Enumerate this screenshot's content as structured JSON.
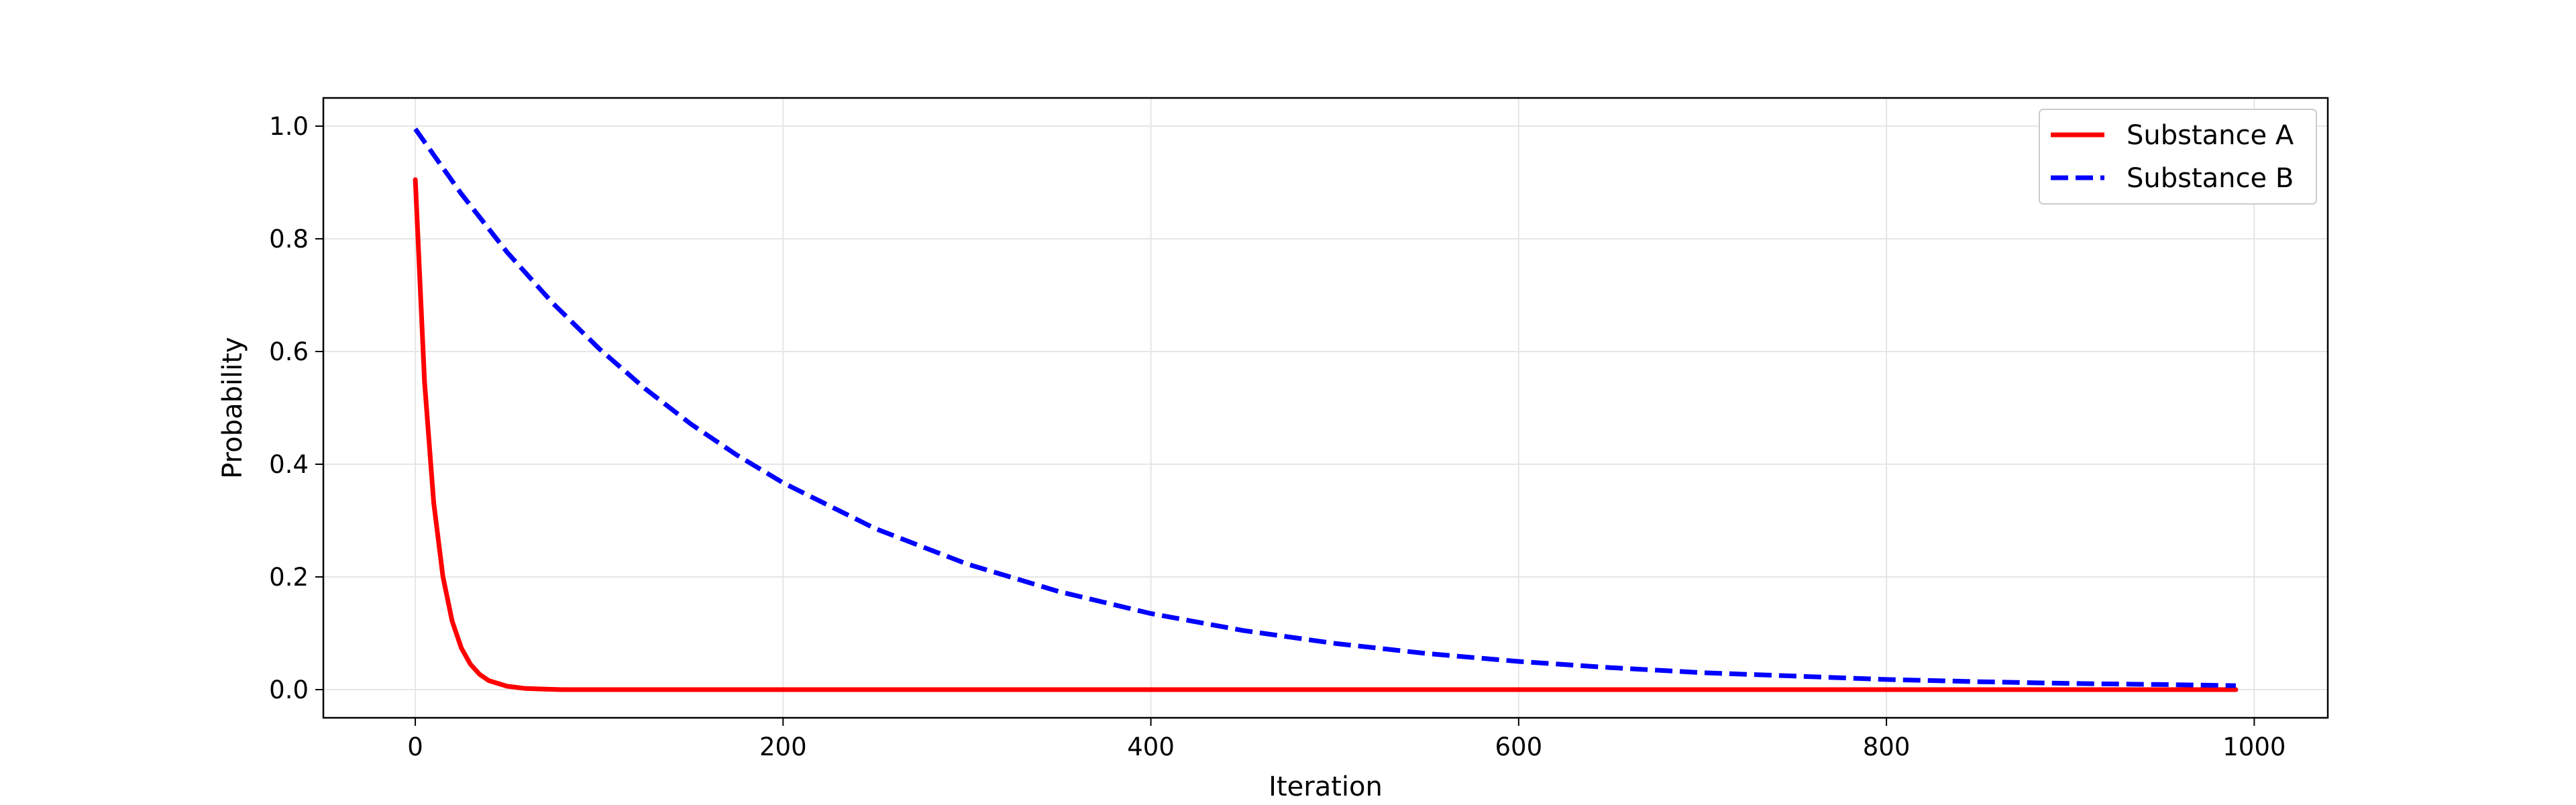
{
  "chart_data": {
    "type": "line",
    "title": "",
    "xlabel": "Iteration",
    "ylabel": "Probability",
    "xlim": [
      -50,
      1040
    ],
    "ylim": [
      -0.05,
      1.05
    ],
    "xticks": [
      0,
      200,
      400,
      600,
      800,
      1000
    ],
    "xtick_labels": [
      "0",
      "200",
      "400",
      "600",
      "800",
      "1000"
    ],
    "yticks": [
      0.0,
      0.2,
      0.4,
      0.6,
      0.8,
      1.0
    ],
    "ytick_labels": [
      "0.0",
      "0.2",
      "0.4",
      "0.6",
      "0.8",
      "1.0"
    ],
    "grid": true,
    "legend_position": "top-right",
    "series": [
      {
        "name": "Substance A",
        "color": "#ff0000",
        "style": "solid",
        "x": [
          0,
          5,
          10,
          15,
          20,
          25,
          30,
          35,
          40,
          50,
          60,
          70,
          80,
          100,
          150,
          200,
          300,
          400,
          500,
          600,
          700,
          800,
          900,
          990
        ],
        "y": [
          0.905,
          0.547,
          0.332,
          0.201,
          0.122,
          0.074,
          0.045,
          0.027,
          0.016,
          0.006,
          0.002,
          0.001,
          0.0,
          0.0,
          0.0,
          0.0,
          0.0,
          0.0,
          0.0,
          0.0,
          0.0,
          0.0,
          0.0,
          0.0
        ]
      },
      {
        "name": "Substance B",
        "color": "#0000ff",
        "style": "dashed",
        "x": [
          0,
          25,
          50,
          75,
          100,
          125,
          150,
          175,
          200,
          250,
          300,
          350,
          400,
          450,
          500,
          550,
          600,
          650,
          700,
          750,
          800,
          850,
          900,
          950,
          990
        ],
        "y": [
          0.995,
          0.88,
          0.776,
          0.685,
          0.605,
          0.534,
          0.471,
          0.416,
          0.367,
          0.286,
          0.223,
          0.174,
          0.135,
          0.105,
          0.082,
          0.064,
          0.05,
          0.039,
          0.03,
          0.024,
          0.018,
          0.014,
          0.011,
          0.009,
          0.007
        ]
      }
    ]
  }
}
